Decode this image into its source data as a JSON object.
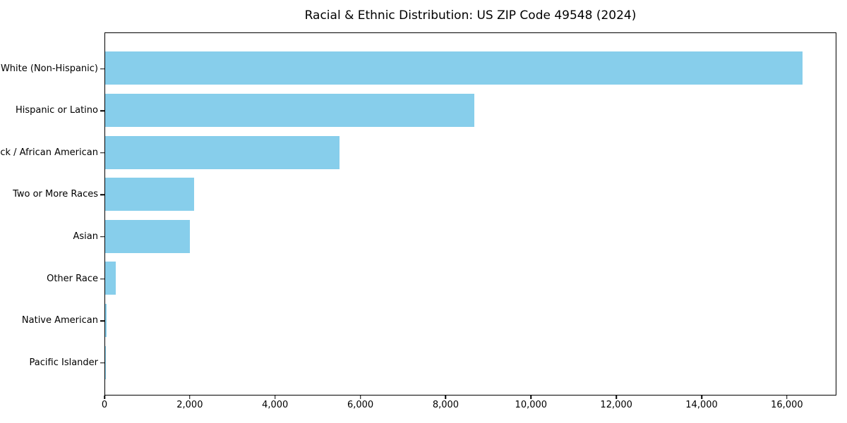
{
  "chart_data": {
    "type": "bar",
    "orientation": "horizontal",
    "title": "Racial & Ethnic Distribution: US ZIP Code 49548 (2024)",
    "categories": [
      "White (Non-Hispanic)",
      "Hispanic or Latino",
      "Black / African American",
      "Two or More Races",
      "Asian",
      "Other Race",
      "Native American",
      "Pacific Islander"
    ],
    "values": [
      16350,
      8650,
      5500,
      2080,
      1980,
      250,
      30,
      10
    ],
    "xlabel": "",
    "ylabel": "",
    "xlim": [
      0,
      17160
    ],
    "x_ticks": [
      0,
      2000,
      4000,
      6000,
      8000,
      10000,
      12000,
      14000,
      16000
    ],
    "x_tick_labels": [
      "0",
      "2,000",
      "4,000",
      "6,000",
      "8,000",
      "10,000",
      "12,000",
      "14,000",
      "16,000"
    ],
    "bar_color": "#87CEEB",
    "spine_color": "#000000",
    "text_color": "#000000",
    "grid": false,
    "legend": null
  }
}
